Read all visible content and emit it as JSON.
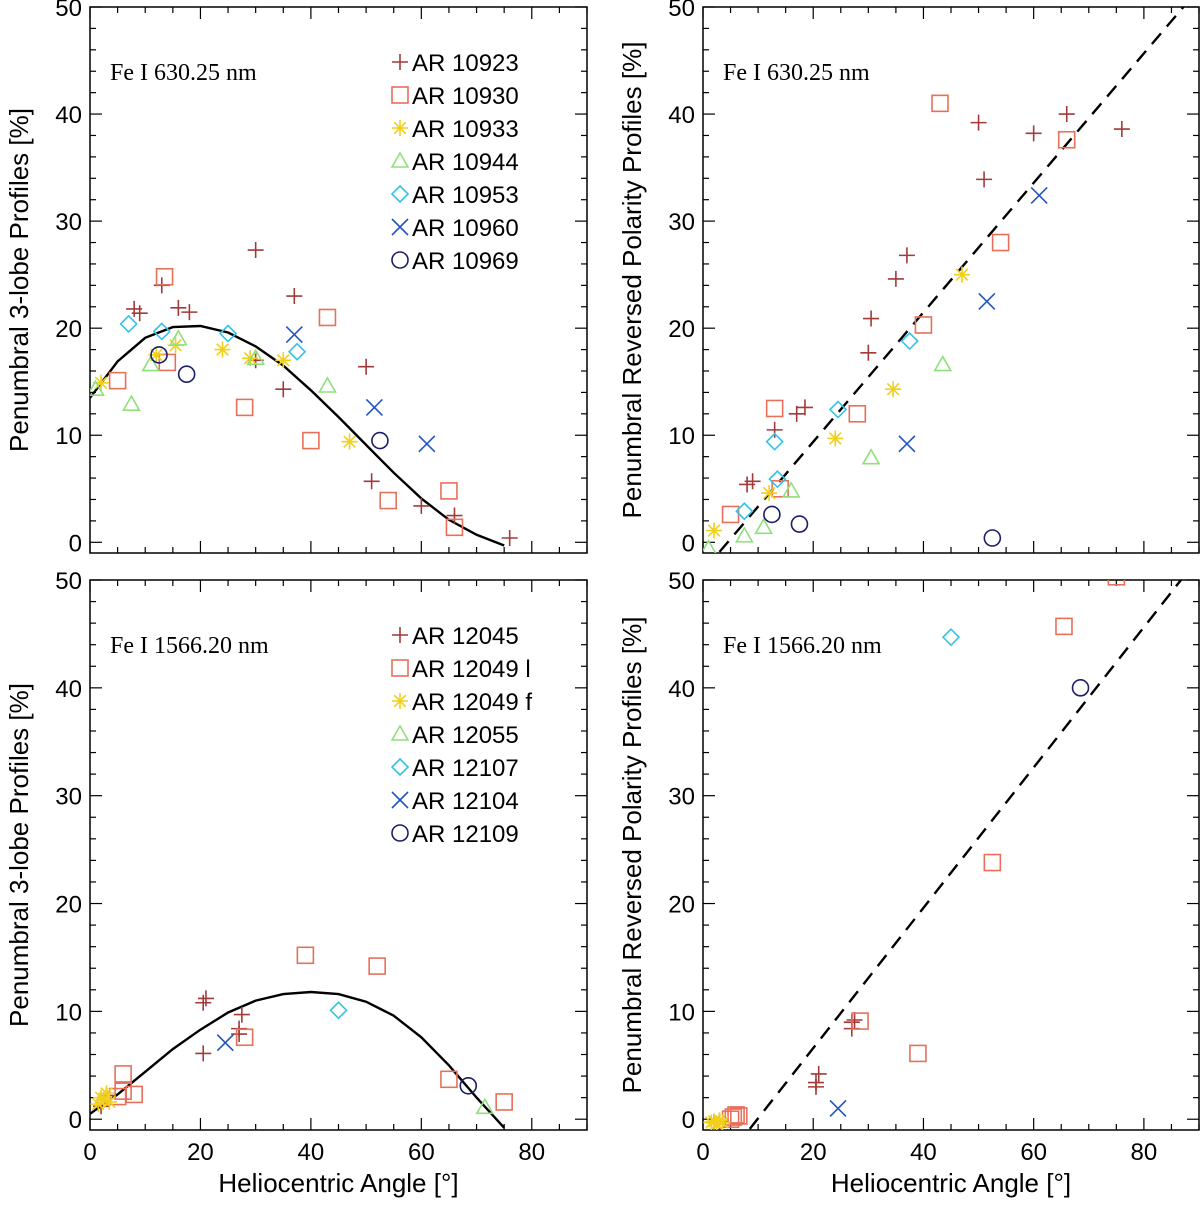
{
  "colors": {
    "AR_plus": "#a23a3a",
    "AR_square": "#e8705a",
    "AR_star": "#f2cf1a",
    "AR_triangle": "#8fe07c",
    "AR_diamond": "#34c2e6",
    "AR_x": "#2255c0",
    "AR_circle": "#1b1f6a",
    "fit": "#000000"
  },
  "chart_data": [
    {
      "id": "p1",
      "type": "scatter",
      "annotation": "Fe I 630.25 nm",
      "xlabel": "",
      "ylabel": "Penumbral 3-lobe Profiles [%]",
      "xlim": [
        0,
        90
      ],
      "ylim": [
        -1,
        50
      ],
      "xticks": [],
      "yticks": [
        "0",
        "10",
        "20",
        "30",
        "40",
        "50"
      ],
      "legend_position": "top-right",
      "fit": {
        "kind": "curve",
        "style": "solid",
        "x": [
          0,
          5,
          10,
          15,
          20,
          25,
          30,
          35,
          40,
          45,
          50,
          55,
          60,
          65,
          70,
          75
        ],
        "y": [
          13.5,
          16.9,
          19.1,
          20.1,
          20.2,
          19.6,
          18.3,
          16.5,
          14.2,
          11.7,
          9.1,
          6.5,
          4.1,
          2.1,
          0.7,
          -0.3
        ]
      },
      "series": [
        {
          "name": "AR 10923",
          "marker": "plus",
          "colorKey": "AR_plus",
          "x": [
            8,
            9,
            13,
            16,
            18,
            30,
            30,
            35,
            37,
            50,
            51,
            60,
            66,
            76
          ],
          "y": [
            21.8,
            21.4,
            24,
            21.9,
            21.5,
            27.3,
            17,
            14.3,
            23,
            16.4,
            5.7,
            3.4,
            2.5,
            0.4
          ]
        },
        {
          "name": "AR 10930",
          "marker": "square",
          "colorKey": "AR_square",
          "x": [
            5,
            13.5,
            14,
            28,
            40,
            43,
            54,
            65,
            66
          ],
          "y": [
            15.1,
            24.8,
            16.8,
            12.6,
            9.5,
            21,
            3.9,
            4.8,
            1.4
          ]
        },
        {
          "name": "AR 10933",
          "marker": "star",
          "colorKey": "AR_star",
          "x": [
            2,
            12,
            15.5,
            24,
            29,
            35,
            47
          ],
          "y": [
            14.9,
            17.5,
            18.4,
            18,
            17.2,
            17,
            9.4
          ]
        },
        {
          "name": "AR 10944",
          "marker": "triangle",
          "colorKey": "AR_triangle",
          "x": [
            1,
            7.5,
            11,
            16,
            30,
            43
          ],
          "y": [
            14.3,
            12.9,
            16.6,
            19,
            17.2,
            14.6
          ]
        },
        {
          "name": "AR 10953",
          "marker": "diamond",
          "colorKey": "AR_diamond",
          "x": [
            7,
            13,
            25,
            37.5
          ],
          "y": [
            20.4,
            19.7,
            19.5,
            17.8
          ]
        },
        {
          "name": "AR 10960",
          "marker": "x",
          "colorKey": "AR_x",
          "x": [
            37,
            51.5,
            61
          ],
          "y": [
            19.4,
            12.6,
            9.2
          ]
        },
        {
          "name": "AR 10969",
          "marker": "circle",
          "colorKey": "AR_circle",
          "x": [
            12.5,
            17.5,
            52.5
          ],
          "y": [
            17.5,
            15.7,
            9.5
          ]
        }
      ]
    },
    {
      "id": "p2",
      "type": "scatter",
      "annotation": "Fe I 630.25 nm",
      "xlabel": "",
      "ylabel": "Penumbral Reversed Polarity Profiles [%]",
      "xlim": [
        0,
        90
      ],
      "ylim": [
        -1,
        50
      ],
      "xticks": [],
      "yticks": [
        "0",
        "10",
        "20",
        "30",
        "40",
        "50"
      ],
      "legend_position": "none",
      "fit": {
        "kind": "line",
        "style": "dashed",
        "x": [
          3,
          88
        ],
        "y": [
          -0.9,
          50.5
        ]
      },
      "series": [
        {
          "name": "AR 10923",
          "marker": "plus",
          "colorKey": "AR_plus",
          "x": [
            8,
            9,
            13,
            17,
            18.5,
            30,
            30.5,
            35,
            37,
            50,
            51,
            60,
            66,
            76
          ],
          "y": [
            5.4,
            5.7,
            10.5,
            12,
            12.6,
            17.7,
            20.9,
            24.6,
            26.8,
            39.2,
            33.9,
            38.2,
            40,
            38.6
          ]
        },
        {
          "name": "AR 10930",
          "marker": "square",
          "colorKey": "AR_square",
          "x": [
            5,
            13,
            14,
            28,
            40,
            43,
            54,
            66
          ],
          "y": [
            2.6,
            12.5,
            5,
            12,
            20.3,
            41,
            28,
            37.6
          ]
        },
        {
          "name": "AR 10933",
          "marker": "star",
          "colorKey": "AR_star",
          "x": [
            2,
            12,
            24,
            34.5,
            47
          ],
          "y": [
            1.1,
            4.6,
            9.7,
            14.3,
            25
          ]
        },
        {
          "name": "AR 10944",
          "marker": "triangle",
          "colorKey": "AR_triangle",
          "x": [
            1,
            7.5,
            11,
            16,
            30.5,
            43.5
          ],
          "y": [
            -0.6,
            0.6,
            1.4,
            4.8,
            7.9,
            16.6
          ]
        },
        {
          "name": "AR 10953",
          "marker": "diamond",
          "colorKey": "AR_diamond",
          "x": [
            7.5,
            13,
            13.5,
            24.5,
            37.5
          ],
          "y": [
            2.9,
            9.4,
            5.9,
            12.4,
            18.8
          ]
        },
        {
          "name": "AR 10960",
          "marker": "x",
          "colorKey": "AR_x",
          "x": [
            37,
            51.5,
            61
          ],
          "y": [
            9.2,
            22.5,
            32.4
          ]
        },
        {
          "name": "AR 10969",
          "marker": "circle",
          "colorKey": "AR_circle",
          "x": [
            12.5,
            17.5,
            52.5
          ],
          "y": [
            2.6,
            1.7,
            0.4
          ]
        }
      ]
    },
    {
      "id": "p3",
      "type": "scatter",
      "annotation": "Fe I 1566.20 nm",
      "xlabel": "Heliocentric Angle [°]",
      "ylabel": "Penumbral 3-lobe Profiles [%]",
      "xlim": [
        0,
        90
      ],
      "ylim": [
        -1,
        50
      ],
      "xticks": [
        "0",
        "20",
        "40",
        "60",
        "80"
      ],
      "yticks": [
        "0",
        "10",
        "20",
        "30",
        "40",
        "50"
      ],
      "legend_position": "top-right",
      "fit": {
        "kind": "curve",
        "style": "solid",
        "x": [
          0,
          5,
          10,
          15,
          20,
          25,
          30,
          35,
          40,
          45,
          50,
          55,
          60,
          65,
          70,
          75
        ],
        "y": [
          0.5,
          2.3,
          4.4,
          6.5,
          8.3,
          9.9,
          11,
          11.6,
          11.8,
          11.6,
          10.9,
          9.6,
          7.6,
          5,
          2,
          -0.8
        ]
      },
      "series": [
        {
          "name": "AR 12045",
          "marker": "plus",
          "colorKey": "AR_plus",
          "x": [
            2,
            3,
            20.5,
            20.5,
            21,
            27,
            27,
            27.5
          ],
          "y": [
            1.2,
            2.2,
            6.1,
            10.8,
            11.2,
            8.4,
            7.9,
            9.7
          ]
        },
        {
          "name": "AR 12049 l",
          "marker": "square",
          "colorKey": "AR_square",
          "x": [
            5,
            6,
            6,
            8,
            28,
            39,
            52,
            65,
            75
          ],
          "y": [
            2.1,
            2.6,
            4.2,
            2.3,
            7.6,
            15.2,
            14.2,
            3.7,
            1.6
          ]
        },
        {
          "name": "AR 12049 f",
          "marker": "star",
          "colorKey": "AR_star",
          "x": [
            1.5,
            2,
            2.5,
            3,
            3.5
          ],
          "y": [
            1.4,
            2,
            1.8,
            2.4,
            1.6
          ]
        },
        {
          "name": "AR 12055",
          "marker": "triangle",
          "colorKey": "AR_triangle",
          "x": [
            71.5
          ],
          "y": [
            1.1
          ]
        },
        {
          "name": "AR 12107",
          "marker": "diamond",
          "colorKey": "AR_diamond",
          "x": [
            45
          ],
          "y": [
            10.1
          ]
        },
        {
          "name": "AR 12104",
          "marker": "x",
          "colorKey": "AR_x",
          "x": [
            24.5
          ],
          "y": [
            7.1
          ]
        },
        {
          "name": "AR 12109",
          "marker": "circle",
          "colorKey": "AR_circle",
          "x": [
            68.5
          ],
          "y": [
            3.1
          ]
        }
      ]
    },
    {
      "id": "p4",
      "type": "scatter",
      "annotation": "Fe I 1566.20 nm",
      "xlabel": "Heliocentric Angle [°]",
      "ylabel": "Penumbral Reversed Polarity Profiles [%]",
      "xlim": [
        0,
        90
      ],
      "ylim": [
        -1,
        50
      ],
      "xticks": [
        "0",
        "20",
        "40",
        "60",
        "80"
      ],
      "yticks": [
        "0",
        "10",
        "20",
        "30",
        "40",
        "50"
      ],
      "legend_position": "none",
      "fit": {
        "kind": "line",
        "style": "dashed",
        "x": [
          8.5,
          87.5
        ],
        "y": [
          -0.9,
          50.5
        ]
      },
      "series": [
        {
          "name": "AR 12045",
          "marker": "plus",
          "colorKey": "AR_plus",
          "x": [
            2,
            3,
            20.5,
            20.5,
            21,
            27,
            27,
            27.5
          ],
          "y": [
            -0.3,
            -0.2,
            3,
            3.4,
            4.2,
            8.4,
            9,
            9.2
          ]
        },
        {
          "name": "AR 12049 l",
          "marker": "square",
          "colorKey": "AR_square",
          "x": [
            5,
            5.5,
            6,
            6.5,
            28.5,
            39,
            52.5,
            65.5,
            75
          ],
          "y": [
            0,
            0.2,
            0.4,
            0.3,
            9.1,
            6.1,
            23.8,
            45.7,
            50.3
          ]
        },
        {
          "name": "AR 12049 f",
          "marker": "star",
          "colorKey": "AR_star",
          "x": [
            1.5,
            2,
            2.5,
            3,
            3.5
          ],
          "y": [
            -0.3,
            -0.2,
            -0.4,
            -0.1,
            -0.3
          ]
        },
        {
          "name": "AR 12107",
          "marker": "diamond",
          "colorKey": "AR_diamond",
          "x": [
            45
          ],
          "y": [
            44.7
          ]
        },
        {
          "name": "AR 12104",
          "marker": "x",
          "colorKey": "AR_x",
          "x": [
            24.5
          ],
          "y": [
            1
          ]
        },
        {
          "name": "AR 12109",
          "marker": "circle",
          "colorKey": "AR_circle",
          "x": [
            68.5
          ],
          "y": [
            40
          ]
        }
      ]
    }
  ]
}
